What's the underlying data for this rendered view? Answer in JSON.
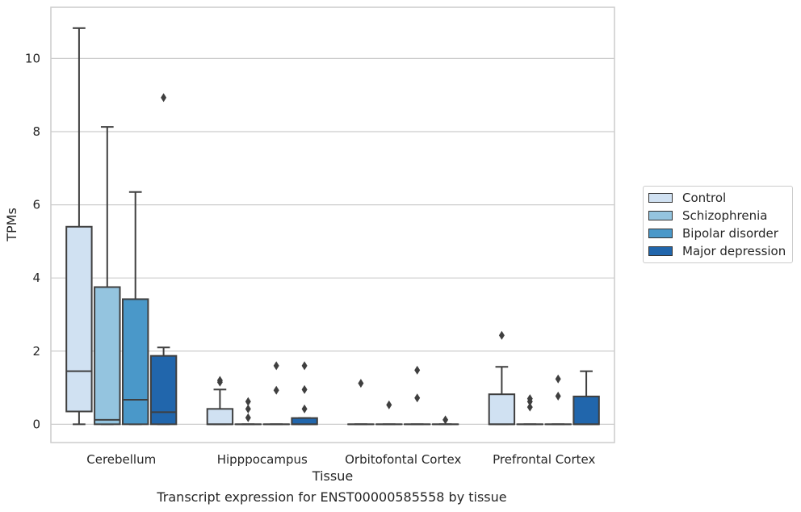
{
  "chart_data": {
    "type": "box",
    "xlabel": "Tissue",
    "ylabel": "TPMs",
    "caption": "Transcript expression for ENST00000585558 by tissue",
    "ylim": [
      -0.5,
      11.4
    ],
    "yticks": [
      0,
      2,
      4,
      6,
      8,
      10
    ],
    "grid": "horizontal",
    "legend_position": "right",
    "categories": [
      "Cerebellum",
      "Hipppocampus",
      "Orbitofontal Cortex",
      "Prefrontal Cortex"
    ],
    "series": [
      {
        "name": "Control",
        "color": "#d0e1f2",
        "boxes": [
          {
            "q1": 0.35,
            "median": 1.45,
            "q3": 5.4,
            "whislo": 0.0,
            "whishi": 10.83,
            "fliers": []
          },
          {
            "q1": 0.0,
            "median": 0.0,
            "q3": 0.42,
            "whislo": 0.0,
            "whishi": 0.95,
            "fliers": [
              1.15,
              1.2
            ]
          },
          {
            "q1": 0.0,
            "median": 0.0,
            "q3": 0.0,
            "whislo": 0.0,
            "whishi": 0.0,
            "fliers": [
              1.12
            ]
          },
          {
            "q1": 0.0,
            "median": 0.0,
            "q3": 0.82,
            "whislo": 0.0,
            "whishi": 1.57,
            "fliers": [
              2.43
            ]
          }
        ]
      },
      {
        "name": "Schizophrenia",
        "color": "#94c4df",
        "boxes": [
          {
            "q1": 0.0,
            "median": 0.12,
            "q3": 3.75,
            "whislo": 0.0,
            "whishi": 8.13,
            "fliers": []
          },
          {
            "q1": 0.0,
            "median": 0.0,
            "q3": 0.0,
            "whislo": 0.0,
            "whishi": 0.0,
            "fliers": [
              0.18,
              0.42,
              0.62
            ]
          },
          {
            "q1": 0.0,
            "median": 0.0,
            "q3": 0.0,
            "whislo": 0.0,
            "whishi": 0.0,
            "fliers": [
              0.53
            ]
          },
          {
            "q1": 0.0,
            "median": 0.0,
            "q3": 0.0,
            "whislo": 0.0,
            "whishi": 0.0,
            "fliers": [
              0.47,
              0.62,
              0.7
            ]
          }
        ]
      },
      {
        "name": "Bipolar disorder",
        "color": "#4a98c9",
        "boxes": [
          {
            "q1": 0.0,
            "median": 0.67,
            "q3": 3.42,
            "whislo": 0.0,
            "whishi": 6.35,
            "fliers": []
          },
          {
            "q1": 0.0,
            "median": 0.0,
            "q3": 0.0,
            "whislo": 0.0,
            "whishi": 0.0,
            "fliers": [
              0.93,
              1.6
            ]
          },
          {
            "q1": 0.0,
            "median": 0.0,
            "q3": 0.0,
            "whislo": 0.0,
            "whishi": 0.0,
            "fliers": [
              0.72,
              1.48
            ]
          },
          {
            "q1": 0.0,
            "median": 0.0,
            "q3": 0.0,
            "whislo": 0.0,
            "whishi": 0.0,
            "fliers": [
              0.77,
              1.24
            ]
          }
        ]
      },
      {
        "name": "Major depression",
        "color": "#2166ac",
        "boxes": [
          {
            "q1": 0.0,
            "median": 0.33,
            "q3": 1.87,
            "whislo": 0.0,
            "whishi": 2.1,
            "fliers": [
              8.93
            ]
          },
          {
            "q1": 0.0,
            "median": 0.0,
            "q3": 0.17,
            "whislo": 0.0,
            "whishi": 0.17,
            "fliers": [
              0.42,
              0.95,
              1.6
            ]
          },
          {
            "q1": 0.0,
            "median": 0.0,
            "q3": 0.0,
            "whislo": 0.0,
            "whishi": 0.0,
            "fliers": [
              0.12
            ]
          },
          {
            "q1": 0.0,
            "median": 0.0,
            "q3": 0.76,
            "whislo": 0.0,
            "whishi": 1.45,
            "fliers": []
          }
        ]
      }
    ]
  }
}
